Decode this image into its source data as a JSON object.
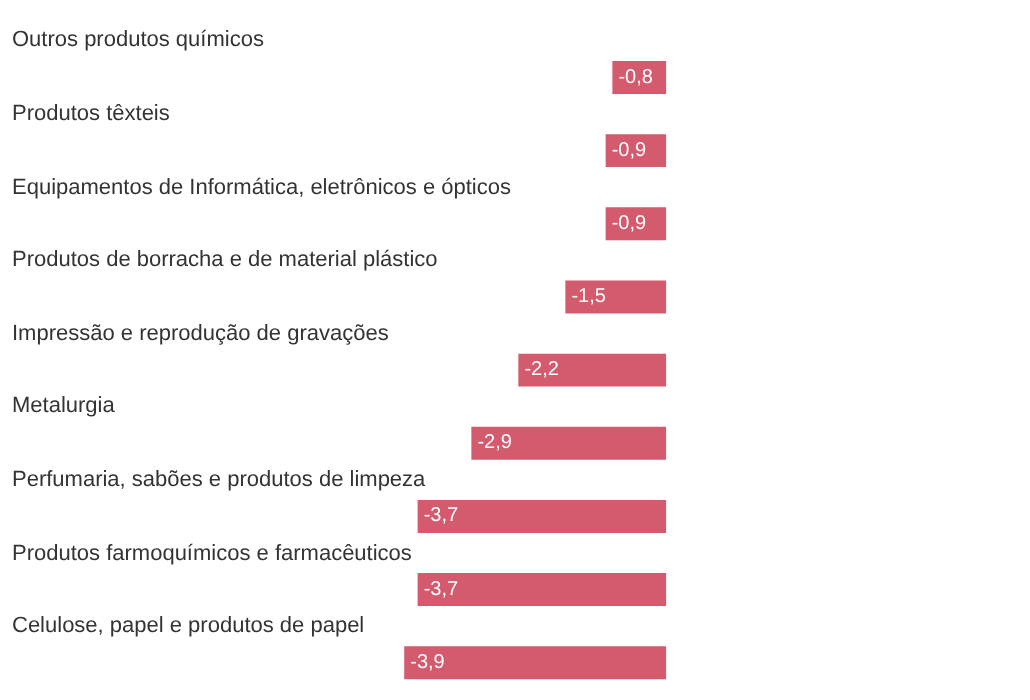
{
  "chart_data": {
    "type": "bar",
    "orientation": "horizontal",
    "categories": [
      "Outros produtos químicos",
      "Produtos têxteis",
      "Equipamentos de Informática, eletrônicos e ópticos",
      "Produtos de borracha e de material plástico",
      "Impressão e reprodução de gravações",
      "Metalurgia",
      "Perfumaria, sabões e produtos de limpeza",
      "Produtos farmoquímicos e farmacêuticos",
      "Celulose, papel e produtos de papel"
    ],
    "values": [
      -0.8,
      -0.9,
      -0.9,
      -1.5,
      -2.2,
      -2.9,
      -3.7,
      -3.7,
      -3.9
    ],
    "value_labels": [
      "-0,8",
      "-0,9",
      "-0,9",
      "-1,5",
      "-2,2",
      "-2,9",
      "-3,7",
      "-3,7",
      "-3,9"
    ],
    "color": "#d45a6e",
    "xlim": [
      -9.8,
      5.3
    ],
    "tick_labels": false,
    "legend": false
  }
}
